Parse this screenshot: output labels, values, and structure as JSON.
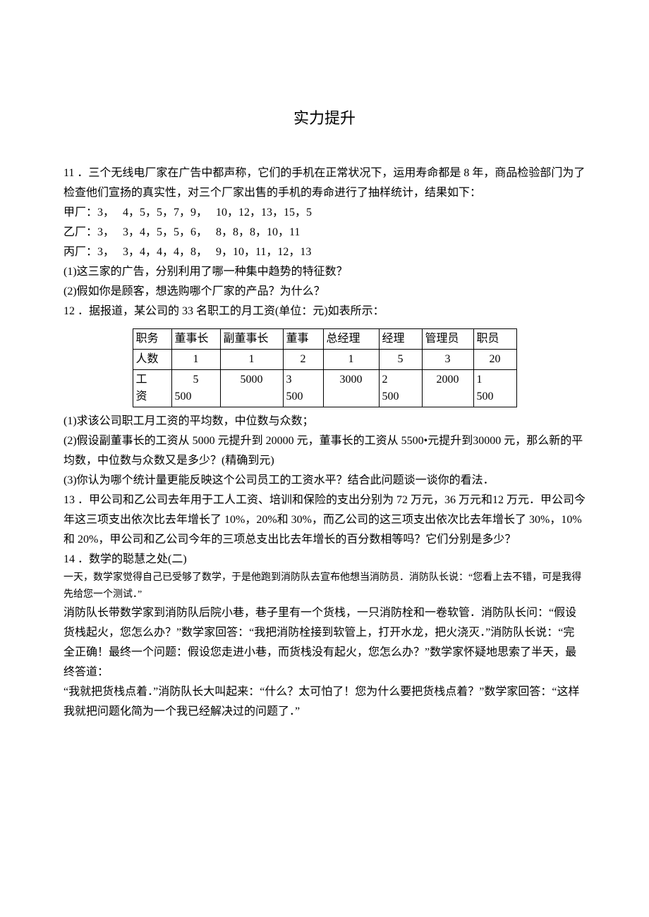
{
  "title": "实力提升",
  "p11_intro": "11 ．三个无线电厂家在广告中都声称，它们的手机在正常状况下，运用寿命都是 8 年，商品检验部门为了检查他们宣扬的真实性，对三个厂家出售的手机的寿命进行了抽样统计，结果如下：",
  "p11_jia": "甲厂：3，   4，5，5，7，9，   10，12，13，15，5",
  "p11_yi": "乙厂：3，   3，4，5，5，6，   8，8，8，10，11",
  "p11_bing": "丙厂：3，   3，4，4，4，8，   9，10，11，12，13",
  "p11_q1": "(1)这三家的广告，分别利用了哪一种集中趋势的特征数？",
  "p11_q2": "(2)假如你是顾客，想选购哪个厂家的产品？为什么？",
  "p12_intro": "12 ．据报道，某公司的 33 名职工的月工资(单位：元)如表所示：",
  "table": {
    "columns": [
      "职务",
      "董事长",
      "副董事长",
      "董事",
      "总经理",
      "经理",
      "管理员",
      "职员"
    ],
    "row_people_label": "人数",
    "row_people": [
      "1",
      "1",
      "2",
      "1",
      "5",
      "3",
      "20"
    ],
    "row_wage_label_l1": "工",
    "row_wage_label_l2": "资",
    "row_wage_c1_l1": "5",
    "row_wage_c1_l2": "500",
    "row_wage_c2": "5000",
    "row_wage_c3_l1": "3",
    "row_wage_c3_l2": "500",
    "row_wage_c4": "3000",
    "row_wage_c5_l1": "2",
    "row_wage_c5_l2": "500",
    "row_wage_c6": "2000",
    "row_wage_c7_l1": "1",
    "row_wage_c7_l2": "500"
  },
  "p12_q1": "(1)求该公司职工月工资的平均数，中位数与众数；",
  "p12_q2": "(2)假设副董事长的工资从 5000 元提升到 20000 元，董事长的工资从 5500•元提升到30000 元，那么新的平均数，中位数与众数又是多少？(精确到元)",
  "p12_q3": "(3)你认为哪个统计量更能反映这个公司员工的工资水平？结合此问题谈一谈你的看法．",
  "p13": "13 ．甲公司和乙公司去年用于工人工资、培训和保险的支出分别为 72 万元，36 万元和12 万元．甲公司今年这三项支出依次比去年增长了 10%，20%和 30%，而乙公司的这三项支出依次比去年增长了 30%，10%和 20%，甲公司和乙公司今年的三项总支出比去年增长的百分数相等吗？它们分别是多少？",
  "p14_title": "14 ．数学的聪慧之处(二)",
  "p14_s1": "一天，数学家觉得自己已受够了数学，于是他跑到消防队去宣布他想当消防员．消防队长说：“您看上去不错，可是我得先给您一个测试．”",
  "p14_p2": "消防队长带数学家到消防队后院小巷，巷子里有一个货栈，一只消防栓和一卷软管．消防队长问：“假设货栈起火，您怎么办？”数学家回答：“我把消防栓接到软管上，打开水龙，把火浇灭．”消防队长说：“完全正确！最终一个问题：假设您走进小巷，而货栈没有起火，您怎么办？”数学家怀疑地思索了半天，最终答道：",
  "p14_p3": "“我就把货栈点着．”消防队长大叫起来：“什么？太可怕了！您为什么要把货栈点着？”数学家回答：“这样我就把问题化简为一个我已经解决过的问题了．”"
}
